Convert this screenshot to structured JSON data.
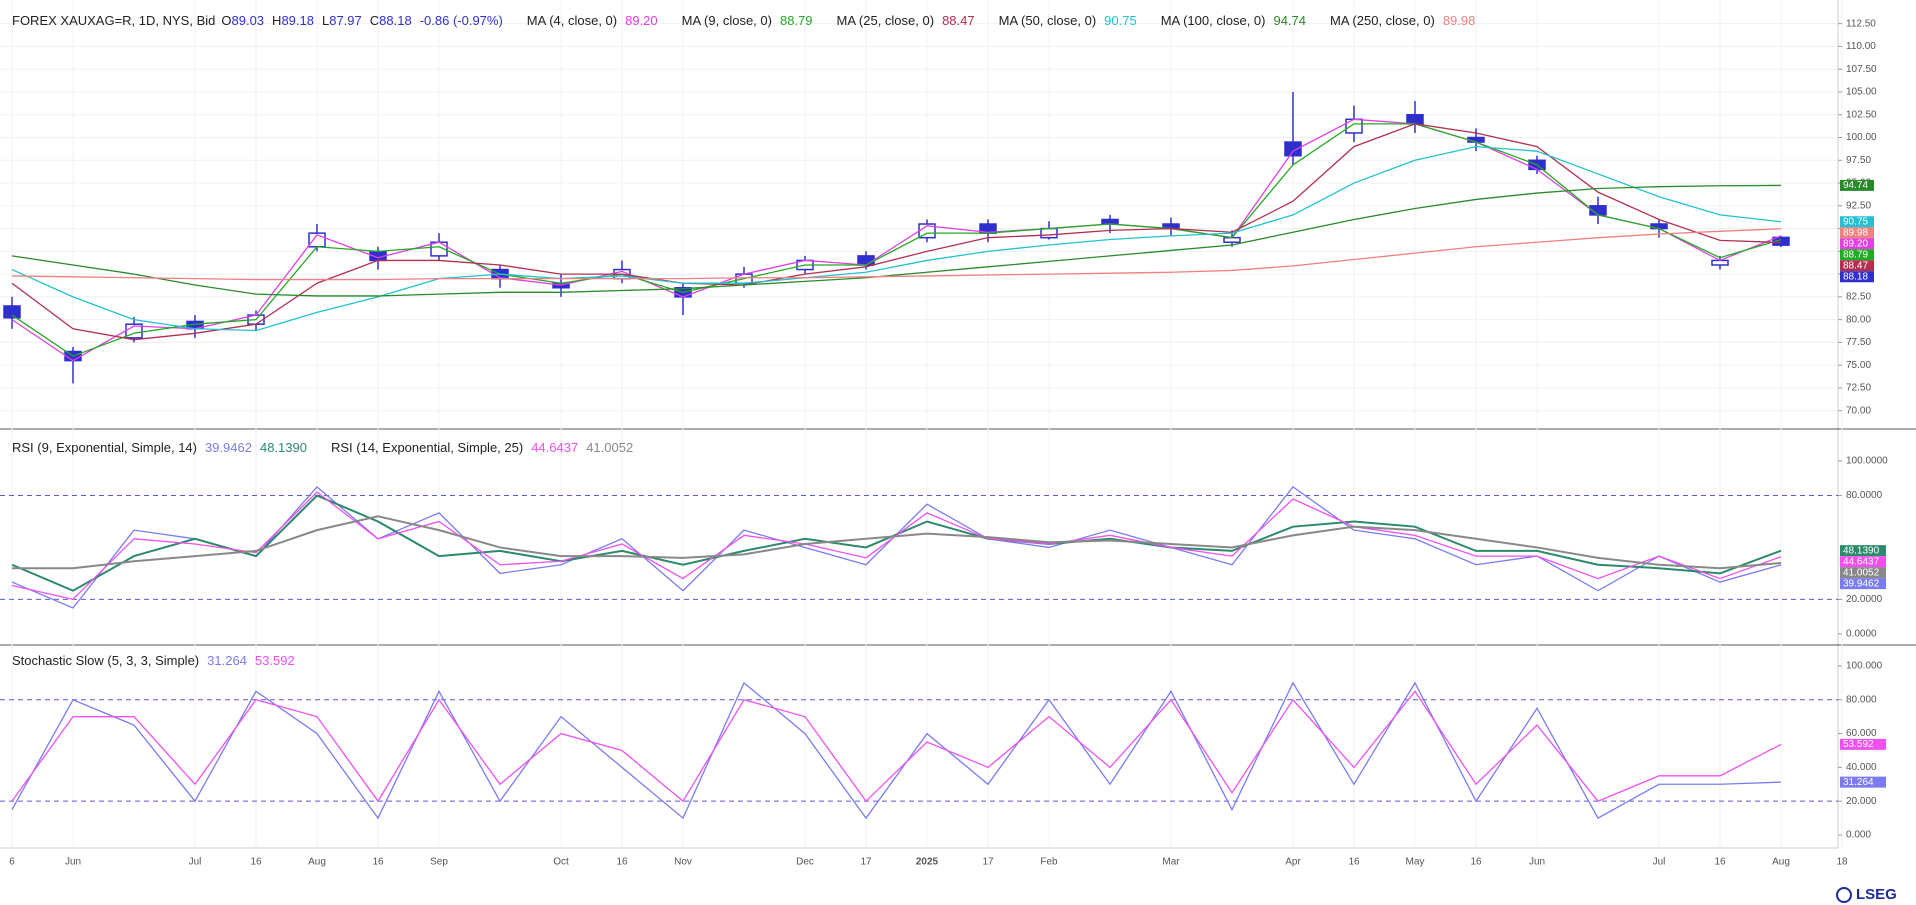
{
  "chart_data": [
    {
      "type": "candlestick",
      "title": "FOREX XAUXAG=R, 1D, NYS, Bid",
      "ohlc_letters": [
        "O",
        "H",
        "L",
        "C"
      ],
      "change": "-0.86 (-0.97%)",
      "categories": [
        "6",
        "Jun",
        null,
        "Jul",
        "16",
        "Aug",
        "16",
        "Sep",
        null,
        "Oct",
        "16",
        "Nov",
        null,
        "Dec",
        "17",
        "2025",
        "17",
        "Feb",
        null,
        "Mar",
        null,
        "Apr",
        "16",
        "May",
        "16",
        "Jun",
        null,
        "Jul",
        "16",
        "Aug",
        "18"
      ],
      "open": [
        81.5,
        76.5,
        78.0,
        79.8,
        79.5,
        88.0,
        87.5,
        87.0,
        85.5,
        84.0,
        84.5,
        83.5,
        84.0,
        85.5,
        87.0,
        89.0,
        90.5,
        89.0,
        91.0,
        90.5,
        88.5,
        99.5,
        100.5,
        102.5,
        100.0,
        97.5,
        92.5,
        90.5,
        86.0,
        89.03,
        null
      ],
      "high": [
        82.5,
        77.0,
        80.3,
        80.5,
        81.0,
        90.5,
        88.0,
        89.5,
        86.0,
        85.0,
        86.5,
        84.0,
        85.8,
        87.0,
        87.5,
        91.0,
        91.0,
        90.8,
        91.5,
        91.2,
        89.8,
        105.0,
        103.5,
        104.0,
        101.0,
        98.0,
        93.5,
        91.0,
        87.0,
        89.18,
        null
      ],
      "low": [
        79.0,
        73.0,
        77.5,
        78.0,
        78.8,
        87.5,
        85.5,
        86.5,
        83.5,
        82.5,
        84.0,
        80.5,
        83.5,
        85.0,
        85.5,
        88.5,
        88.5,
        88.8,
        89.5,
        89.2,
        88.0,
        97.0,
        99.5,
        100.5,
        98.5,
        96.0,
        90.5,
        89.0,
        85.5,
        87.97,
        null
      ],
      "close": [
        80.2,
        75.5,
        79.5,
        79.0,
        80.5,
        89.5,
        86.5,
        88.5,
        84.5,
        83.5,
        85.5,
        82.5,
        85.0,
        86.5,
        86.0,
        90.5,
        89.5,
        90.0,
        90.5,
        90.0,
        89.0,
        98.0,
        102.0,
        101.5,
        99.5,
        96.5,
        91.5,
        90.0,
        86.5,
        88.18,
        null
      ],
      "color": "#2f2fd0",
      "series": [
        {
          "name": "MA (4, close, 0)",
          "color": "#e040e0",
          "values": [
            80,
            75.5,
            79.3,
            79,
            80.5,
            89.3,
            86.8,
            88.5,
            84.6,
            83.8,
            85.3,
            82.5,
            85,
            86.5,
            86,
            90.3,
            89.6,
            90,
            90.5,
            90,
            89,
            98.5,
            102,
            101.5,
            99.5,
            96.5,
            91.5,
            90,
            86.5,
            89.2,
            null
          ],
          "value_labels": [
            null,
            null,
            null,
            null,
            null,
            null,
            null,
            null,
            null,
            null,
            null,
            null,
            null,
            null,
            null,
            null,
            null,
            null,
            null,
            null,
            null,
            null,
            null,
            null,
            null,
            null,
            null,
            null,
            null,
            "89.20",
            null
          ]
        },
        {
          "name": "MA (9, close, 0)",
          "color": "#22aa22",
          "values": [
            80.5,
            76,
            78.5,
            79.5,
            80,
            88,
            87.5,
            88,
            85,
            84,
            85,
            83,
            84.5,
            86,
            86,
            89.5,
            89.5,
            90,
            90.5,
            90,
            89,
            97,
            101.5,
            101.5,
            99.5,
            97,
            91.5,
            90,
            86.8,
            88.79,
            null
          ]
        },
        {
          "name": "MA (25, close, 0)",
          "color": "#b03050",
          "values": [
            84,
            79,
            77.8,
            78.5,
            79.5,
            84,
            86.5,
            86.5,
            86,
            85,
            85,
            84,
            83.8,
            85,
            85.8,
            87.5,
            89,
            89.3,
            89.8,
            90,
            89.6,
            93,
            99,
            101.5,
            100.5,
            99,
            94,
            91,
            88.7,
            88.47,
            null
          ]
        },
        {
          "name": "MA (50, close, 0)",
          "color": "#22c0d0",
          "values": [
            85.5,
            82.5,
            80,
            79,
            78.8,
            80.8,
            82.5,
            84.5,
            85,
            84.5,
            84.8,
            84,
            84,
            84.6,
            85.2,
            86.5,
            87.5,
            88.2,
            88.8,
            89.2,
            89.5,
            91.5,
            95,
            97.5,
            99,
            98.5,
            96,
            93.5,
            91.5,
            90.75,
            null
          ]
        },
        {
          "name": "MA (100, close, 0)",
          "color": "#2a8a2a",
          "values": [
            87,
            86,
            85,
            83.8,
            82.8,
            82.6,
            82.6,
            82.8,
            83,
            83,
            83.2,
            83.4,
            83.8,
            84.2,
            84.6,
            85.2,
            85.8,
            86.4,
            87,
            87.6,
            88.2,
            89.6,
            91,
            92.2,
            93.2,
            93.9,
            94.4,
            94.6,
            94.7,
            94.74,
            null
          ]
        },
        {
          "name": "MA (250, close, 0)",
          "color": "#f08080",
          "values": [
            84.8,
            84.7,
            84.6,
            84.5,
            84.4,
            84.4,
            84.4,
            84.5,
            84.5,
            84.5,
            84.5,
            84.5,
            84.6,
            84.6,
            84.7,
            84.8,
            84.9,
            85,
            85.1,
            85.2,
            85.4,
            85.9,
            86.6,
            87.3,
            88,
            88.5,
            89,
            89.4,
            89.7,
            89.98,
            null
          ]
        }
      ],
      "ylim": [
        68.1,
        115.1
      ],
      "yticks": [
        {
          "value": 70,
          "label": "70.00"
        },
        {
          "value": 72.5,
          "label": "72.50"
        },
        {
          "value": 75,
          "label": "75.00"
        },
        {
          "value": 77.5,
          "label": "77.50"
        },
        {
          "value": 80,
          "label": "80.00"
        },
        {
          "value": 82.5,
          "label": "82.50"
        },
        {
          "value": 85,
          "label": "85.00"
        },
        {
          "value": 87.5,
          "label": "87.50"
        },
        {
          "value": 90,
          "label": "90.00"
        },
        {
          "value": 92.5,
          "label": "92.50"
        },
        {
          "value": 95,
          "label": "95.00"
        },
        {
          "value": 97.5,
          "label": "97.50"
        },
        {
          "value": 100,
          "label": "100.00"
        },
        {
          "value": 102.5,
          "label": "102.50"
        },
        {
          "value": 105,
          "label": "105.00"
        },
        {
          "value": 107.5,
          "label": "107.50"
        },
        {
          "value": 110,
          "label": "110.00"
        },
        {
          "value": 112.5,
          "label": "112.50"
        }
      ],
      "grid": true
    },
    {
      "type": "line",
      "series": [
        {
          "name": "RSI (9, Exponential, Simple, 14)",
          "color": "#7b7bf0",
          "values": [
            30,
            15,
            60,
            55,
            45,
            85,
            55,
            70,
            35,
            40,
            55,
            25,
            60,
            50,
            40,
            75,
            55,
            50,
            60,
            50,
            40,
            85,
            60,
            55,
            40,
            45,
            25,
            45,
            30,
            39.9462,
            null
          ]
        },
        {
          "color": "#2a8a6a",
          "values": [
            40,
            25,
            45,
            55,
            45,
            80,
            65,
            45,
            48,
            42,
            48,
            40,
            48,
            55,
            50,
            65,
            55,
            52,
            55,
            50,
            48,
            62,
            65,
            62,
            48,
            48,
            40,
            38,
            35,
            48.139,
            null
          ],
          "value_labels": [
            null,
            null,
            null,
            null,
            null,
            null,
            null,
            null,
            null,
            null,
            null,
            null,
            null,
            null,
            null,
            null,
            null,
            null,
            null,
            null,
            null,
            null,
            null,
            null,
            null,
            null,
            null,
            null,
            null,
            "48.1390",
            null
          ]
        },
        {
          "name": "RSI (14, Exponential, Simple, 25)",
          "color": "#f050f0",
          "values": [
            28,
            20,
            55,
            52,
            47,
            82,
            55,
            65,
            40,
            42,
            52,
            32,
            57,
            52,
            44,
            70,
            55,
            52,
            57,
            50,
            45,
            78,
            62,
            57,
            45,
            45,
            32,
            45,
            32,
            44.6437,
            null
          ]
        },
        {
          "color": "#888888",
          "values": [
            38,
            38,
            42,
            45,
            48,
            60,
            68,
            60,
            50,
            45,
            45,
            44,
            46,
            52,
            55,
            58,
            56,
            53,
            54,
            52,
            50,
            57,
            62,
            60,
            55,
            50,
            44,
            40,
            38,
            41.0052,
            null
          ]
        }
      ],
      "levels": [
        80,
        20
      ],
      "level_color": "#5b5bd6",
      "ylim": [
        -6.4,
        117.9
      ],
      "yticks": [
        {
          "value": 0,
          "label": "0.0000"
        },
        {
          "value": 20,
          "label": "20.0000"
        },
        {
          "value": 80,
          "label": "80.0000"
        },
        {
          "value": 100,
          "label": "100.0000"
        }
      ]
    },
    {
      "type": "line",
      "series": [
        {
          "name": "Stochastic Slow (5, 3, 3, Simple)",
          "color": "#7b7bf0",
          "values": [
            15,
            80,
            65,
            20,
            85,
            60,
            10,
            85,
            20,
            70,
            40,
            10,
            90,
            60,
            10,
            60,
            30,
            80,
            30,
            85,
            15,
            90,
            30,
            90,
            20,
            75,
            10,
            30,
            30,
            31.264,
            null
          ]
        },
        {
          "color": "#f050f0",
          "values": [
            20,
            70,
            70,
            30,
            80,
            70,
            20,
            80,
            30,
            60,
            50,
            20,
            80,
            70,
            20,
            55,
            40,
            70,
            40,
            80,
            25,
            80,
            40,
            85,
            30,
            65,
            20,
            35,
            35,
            53.592,
            null
          ]
        }
      ],
      "levels": [
        80,
        20
      ],
      "level_color": "#5b5bd6",
      "ylim": [
        -7.7,
        112.4
      ],
      "yticks": [
        {
          "value": 0,
          "label": "0.000"
        },
        {
          "value": 20,
          "label": "20.000"
        },
        {
          "value": 40,
          "label": "40.000"
        },
        {
          "value": 60,
          "label": "60.000"
        },
        {
          "value": 80,
          "label": "80.000"
        },
        {
          "value": 100,
          "label": "100.000"
        }
      ]
    }
  ],
  "brand": "LSEG"
}
